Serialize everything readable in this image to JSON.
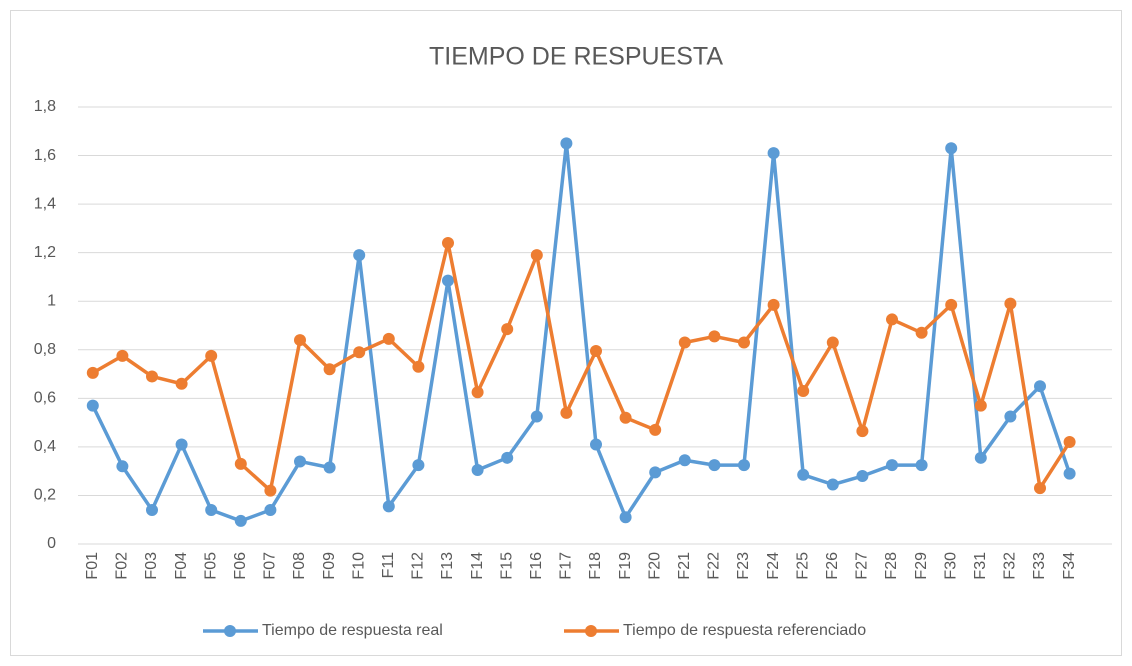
{
  "chart_data": {
    "type": "line",
    "title": "TIEMPO DE RESPUESTA",
    "categories": [
      "F01",
      "F02",
      "F03",
      "F04",
      "F05",
      "F06",
      "F07",
      "F08",
      "F09",
      "F10",
      "F11",
      "F12",
      "F13",
      "F14",
      "F15",
      "F16",
      "F17",
      "F18",
      "F19",
      "F20",
      "F21",
      "F22",
      "F23",
      "F24",
      "F25",
      "F26",
      "F27",
      "F28",
      "F29",
      "F30",
      "F31",
      "F32",
      "F33",
      "F34"
    ],
    "series": [
      {
        "name": "Tiempo de respuesta real",
        "color": "#5b9bd5",
        "values": [
          0.57,
          0.32,
          0.14,
          0.41,
          0.14,
          0.095,
          0.14,
          0.34,
          0.315,
          1.19,
          0.155,
          0.325,
          1.085,
          0.305,
          0.355,
          0.525,
          1.65,
          0.41,
          0.11,
          0.295,
          0.345,
          0.325,
          0.325,
          1.61,
          0.285,
          0.245,
          0.28,
          0.325,
          0.325,
          1.63,
          0.355,
          0.525,
          0.65,
          0.29
        ]
      },
      {
        "name": "Tiempo de respuesta referenciado",
        "color": "#ed7d31",
        "values": [
          0.705,
          0.775,
          0.69,
          0.66,
          0.775,
          0.33,
          0.22,
          0.84,
          0.72,
          0.79,
          0.845,
          0.73,
          1.24,
          0.625,
          0.885,
          1.19,
          0.54,
          0.795,
          0.52,
          0.47,
          0.83,
          0.855,
          0.83,
          0.985,
          0.63,
          0.83,
          0.465,
          0.925,
          0.87,
          0.985,
          0.57,
          0.99,
          0.23,
          0.42
        ]
      }
    ],
    "ylim": [
      0,
      1.8
    ],
    "yticks": [
      0,
      {
        "value": 0.2,
        "label": "0,2"
      },
      {
        "value": 0.4,
        "label": "0,4"
      },
      {
        "value": 0.6,
        "label": "0,6"
      },
      {
        "value": 0.8,
        "label": "0,8"
      },
      1,
      {
        "value": 1.2,
        "label": "1,2"
      },
      {
        "value": 1.4,
        "label": "1,4"
      },
      {
        "value": 1.6,
        "label": "1,6"
      },
      {
        "value": 1.8,
        "label": "1,8"
      }
    ],
    "grid": true,
    "legend": "bottom"
  }
}
